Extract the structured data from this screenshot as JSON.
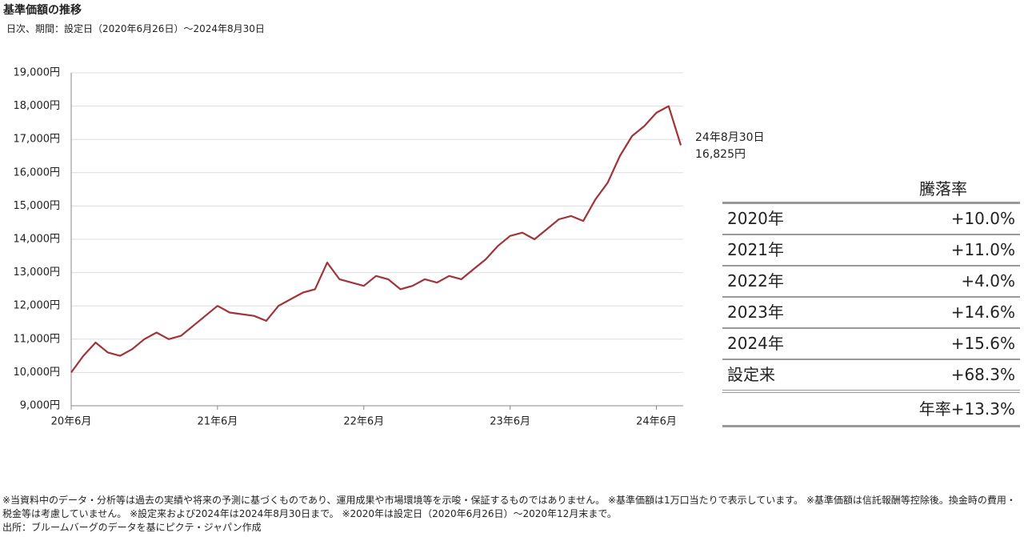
{
  "title": "基準価額の推移",
  "subtitle": "日次、期間：設定日（2020年6月26日）～2024年8月30日",
  "chart_data": {
    "type": "line",
    "x": [
      "2020-06",
      "2020-07",
      "2020-08",
      "2020-09",
      "2020-10",
      "2020-11",
      "2020-12",
      "2021-01",
      "2021-02",
      "2021-03",
      "2021-04",
      "2021-05",
      "2021-06",
      "2021-07",
      "2021-08",
      "2021-09",
      "2021-10",
      "2021-11",
      "2021-12",
      "2022-01",
      "2022-02",
      "2022-03",
      "2022-04",
      "2022-05",
      "2022-06",
      "2022-07",
      "2022-08",
      "2022-09",
      "2022-10",
      "2022-11",
      "2022-12",
      "2023-01",
      "2023-02",
      "2023-03",
      "2023-04",
      "2023-05",
      "2023-06",
      "2023-07",
      "2023-08",
      "2023-09",
      "2023-10",
      "2023-11",
      "2023-12",
      "2024-01",
      "2024-02",
      "2024-03",
      "2024-04",
      "2024-05",
      "2024-06",
      "2024-07",
      "2024-08"
    ],
    "series": [
      {
        "color": "#a0343a",
        "values": [
          10000,
          10500,
          10900,
          10600,
          10500,
          10700,
          11000,
          11200,
          11000,
          11100,
          11400,
          11700,
          12000,
          11800,
          11750,
          11700,
          11550,
          12000,
          12200,
          12400,
          12500,
          13300,
          12800,
          12700,
          12600,
          12900,
          12800,
          12500,
          12600,
          12800,
          12700,
          12900,
          12800,
          13100,
          13400,
          13800,
          14100,
          14200,
          14000,
          14300,
          14600,
          14700,
          14550,
          15200,
          15700,
          16500,
          17100,
          17400,
          17800,
          18000,
          16825
        ]
      }
    ],
    "xlim": [
      "2020-06",
      "2024-08"
    ],
    "xticks": [
      {
        "value": "2020-06",
        "label": "20年6月"
      },
      {
        "value": "2021-06",
        "label": "21年6月"
      },
      {
        "value": "2022-06",
        "label": "22年6月"
      },
      {
        "value": "2023-06",
        "label": "23年6月"
      },
      {
        "value": "2024-06",
        "label": "24年6月"
      }
    ],
    "ylim": [
      9000,
      19000
    ],
    "yticks": [
      {
        "value": 9000,
        "label": "9,000円"
      },
      {
        "value": 10000,
        "label": "10,000円"
      },
      {
        "value": 11000,
        "label": "11,000円"
      },
      {
        "value": 12000,
        "label": "12,000円"
      },
      {
        "value": 13000,
        "label": "13,000円"
      },
      {
        "value": 14000,
        "label": "14,000円"
      },
      {
        "value": 15000,
        "label": "15,000円"
      },
      {
        "value": 16000,
        "label": "16,000円"
      },
      {
        "value": 17000,
        "label": "17,000円"
      },
      {
        "value": 18000,
        "label": "18,000円"
      },
      {
        "value": 19000,
        "label": "19,000円"
      }
    ],
    "grid": true,
    "annotation": {
      "date": "24年8月30日",
      "value": "16,825円"
    }
  },
  "table": {
    "header": "騰落率",
    "rows": [
      [
        "2020年",
        "+10.0%"
      ],
      [
        "2021年",
        "+11.0%"
      ],
      [
        "2022年",
        "+4.0%"
      ],
      [
        "2023年",
        "+14.6%"
      ],
      [
        "2024年",
        "+15.6%"
      ],
      [
        "設定来",
        "+68.3%"
      ]
    ],
    "annualized": "年率+13.3%"
  },
  "notes": [
    "※当資料中のデータ・分析等は過去の実績や将来の予測に基づくものであり、運用成果や市場環境等を示唆・保証するものではありません。 ※基準価額は1万口当たりで表示しています。 ※基準価額は信託報酬等控除後。換金時の費用・税金等は考慮していません。 ※設定来および2024年は2024年8月30日まで。 ※2020年は設定日（2020年6月26日）～2020年12月末まで。",
    "出所：ブルームバーグのデータを基にピクテ・ジャパン作成"
  ]
}
